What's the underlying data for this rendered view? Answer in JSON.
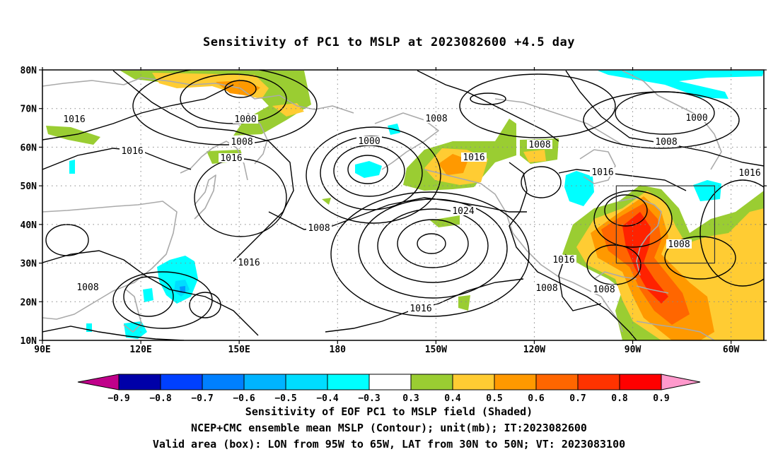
{
  "title": "Sensitivity of PC1 to MSLP at 2023082600 +4.5 day",
  "captions": {
    "line1": "Sensitivity of EOF PC1 to MSLP field (Shaded)",
    "line2": "NCEP+CMC ensemble mean MSLP (Contour); unit(mb); IT:2023082600",
    "line3": "Valid area (box): LON from 95W to 65W, LAT from 30N to 50N; VT: 2023083100"
  },
  "map": {
    "lon_ticks": [
      "90E",
      "120E",
      "150E",
      "180",
      "150W",
      "120W",
      "90W",
      "60W"
    ],
    "lat_ticks": [
      "80N",
      "70N",
      "60N",
      "50N",
      "40N",
      "30N",
      "20N",
      "10N"
    ],
    "valid_box": {
      "lon_west": -95,
      "lon_east": -65,
      "lat_south": 30,
      "lat_north": 50
    }
  },
  "contour_labels": [
    {
      "text": "1016"
    },
    {
      "text": "1000"
    },
    {
      "text": "1008"
    },
    {
      "text": "1016"
    },
    {
      "text": "1016"
    },
    {
      "text": "1000"
    },
    {
      "text": "1008"
    },
    {
      "text": "1016"
    },
    {
      "text": "1008"
    },
    {
      "text": "1000"
    },
    {
      "text": "1008"
    },
    {
      "text": "1016"
    },
    {
      "text": "1016"
    },
    {
      "text": "1024"
    },
    {
      "text": "1008"
    },
    {
      "text": "1016"
    },
    {
      "text": "1008"
    },
    {
      "text": "1016"
    },
    {
      "text": "1008"
    },
    {
      "text": "1008"
    },
    {
      "text": "1016"
    },
    {
      "text": "1008"
    }
  ],
  "colorbar": {
    "colors": [
      "#0000a8",
      "#0040ff",
      "#0080ff",
      "#00b4ff",
      "#00ddff",
      "#00ffff",
      "#ffffff",
      "#9acd32",
      "#ffcc33",
      "#ff9900",
      "#ff6600",
      "#ff3300",
      "#ff0000"
    ],
    "left_arrow_color": "#c0008a",
    "right_arrow_color": "#ff99cc",
    "labels": [
      "−0.9",
      "−0.8",
      "−0.7",
      "−0.6",
      "−0.5",
      "−0.4",
      "−0.3",
      "0.3",
      "0.4",
      "0.5",
      "0.6",
      "0.7",
      "0.8",
      "0.9"
    ]
  },
  "colors": {
    "coast": "#aaaaaa",
    "contour": "#000000",
    "green": "#9acd32",
    "yellow": "#ffcc33",
    "orange": "#ff9900",
    "dark_orange": "#ff6600",
    "red": "#ff2200",
    "cyan": "#00ffff",
    "sky": "#00ddff",
    "blue": "#0099ff"
  }
}
